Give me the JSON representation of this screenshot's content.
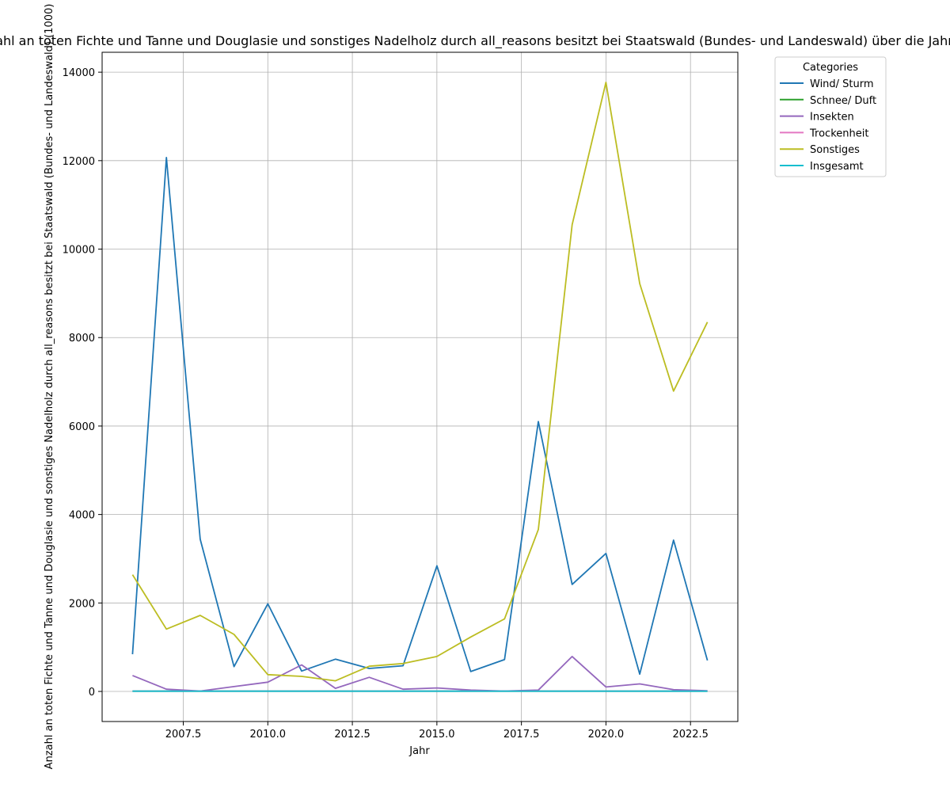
{
  "chart_data": {
    "type": "line",
    "title": "Anzahl an toten Fichte und Tanne und Douglasie und sonstiges Nadelholz durch all_reasons besitzt bei Staatswald (Bundes- und Landeswald) über die Jahre",
    "xlabel": "Jahr",
    "ylabel": "Anzahl an toten Fichte und Tanne und Douglasie und sonstiges Nadelholz durch all_reasons besitzt bei Staatswald (Bundes- und Landeswald) (1000)",
    "xlim": [
      2005.1,
      2023.9
    ],
    "ylim": [
      -680,
      14450
    ],
    "x_ticks": [
      2007.5,
      2010.0,
      2012.5,
      2015.0,
      2017.5,
      2020.0,
      2022.5
    ],
    "x_tick_labels": [
      "2007.5",
      "2010.0",
      "2012.5",
      "2015.0",
      "2017.5",
      "2020.0",
      "2022.5"
    ],
    "y_ticks": [
      0,
      2000,
      4000,
      6000,
      8000,
      10000,
      12000,
      14000
    ],
    "y_tick_labels": [
      "0",
      "2000",
      "4000",
      "6000",
      "8000",
      "10000",
      "12000",
      "14000"
    ],
    "grid": true,
    "legend": {
      "title": "Categories",
      "placement": "outside-top-right"
    },
    "x": [
      2006,
      2007,
      2008,
      2009,
      2010,
      2011,
      2012,
      2013,
      2014,
      2015,
      2016,
      2017,
      2018,
      2019,
      2020,
      2021,
      2022,
      2023
    ],
    "series": [
      {
        "name": "Wind/ Sturm",
        "color": "#1f77b4",
        "values": [
          840,
          12070,
          3440,
          560,
          1980,
          460,
          730,
          520,
          580,
          2840,
          450,
          720,
          6100,
          2420,
          3120,
          390,
          3420,
          700
        ]
      },
      {
        "name": "Schnee/ Duft",
        "color": "#2ca02c",
        "values": [
          5,
          5,
          5,
          5,
          5,
          5,
          5,
          5,
          5,
          5,
          5,
          5,
          5,
          5,
          5,
          5,
          5,
          5
        ]
      },
      {
        "name": "Insekten",
        "color": "#9467bd",
        "values": [
          360,
          50,
          10,
          110,
          210,
          600,
          70,
          320,
          50,
          80,
          30,
          10,
          30,
          790,
          100,
          170,
          40,
          15
        ]
      },
      {
        "name": "Trockenheit",
        "color": "#e377c2",
        "values": [
          5,
          5,
          5,
          5,
          5,
          5,
          5,
          5,
          5,
          5,
          5,
          5,
          5,
          5,
          5,
          5,
          5,
          5
        ]
      },
      {
        "name": "Sonstiges",
        "color": "#bcbd22",
        "values": [
          2640,
          1410,
          1720,
          1290,
          380,
          340,
          240,
          570,
          630,
          790,
          1230,
          1640,
          3660,
          10550,
          13770,
          9220,
          6790,
          8350
        ]
      },
      {
        "name": "Insgesamt",
        "color": "#17becf",
        "values": [
          5,
          5,
          5,
          5,
          5,
          5,
          5,
          5,
          5,
          5,
          5,
          5,
          5,
          5,
          5,
          5,
          5,
          5
        ]
      }
    ]
  }
}
